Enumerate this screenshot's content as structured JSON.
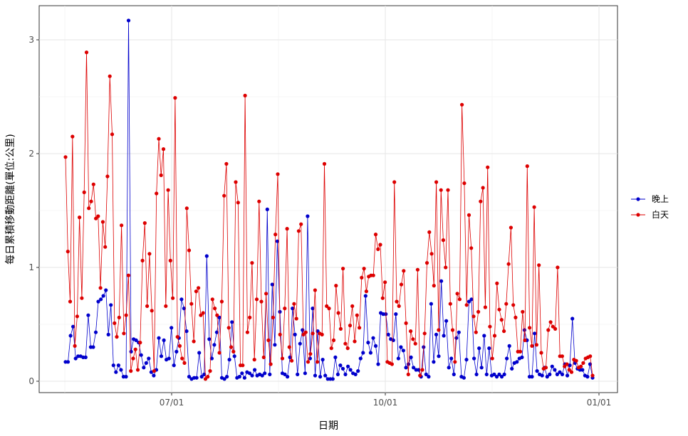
{
  "chart_data": {
    "type": "line",
    "xlabel": "日期",
    "ylabel": "每日累積移動距離(單位:公里)",
    "x_ticks": [
      "07/01",
      "10/01",
      "01/01"
    ],
    "y_ticks": [
      "0",
      "1",
      "2",
      "3"
    ],
    "ylim": [
      -0.1,
      3.3
    ],
    "grid": true,
    "legend_position": "right",
    "series": [
      {
        "name": "晚上",
        "color": "#0000cc",
        "values": [
          0.17,
          0.17,
          0.4,
          0.48,
          0.2,
          0.22,
          0.22,
          0.21,
          0.21,
          0.58,
          0.3,
          0.3,
          0.43,
          0.7,
          0.72,
          0.75,
          0.8,
          0.41,
          0.67,
          0.14,
          0.08,
          0.14,
          0.1,
          0.04,
          0.04,
          3.17,
          0.26,
          0.37,
          0.36,
          0.34,
          0.23,
          0.12,
          0.16,
          0.2,
          0.08,
          0.05,
          0.1,
          0.38,
          0.22,
          0.36,
          0.19,
          0.2,
          0.47,
          0.14,
          0.26,
          0.38,
          0.72,
          0.64,
          0.44,
          0.04,
          0.02,
          0.03,
          0.03,
          0.25,
          0.04,
          0.06,
          1.1,
          0.37,
          0.2,
          0.32,
          0.43,
          0.56,
          0.03,
          0.02,
          0.04,
          0.19,
          0.52,
          0.22,
          0.03,
          0.04,
          0.07,
          0.03,
          0.08,
          0.07,
          0.05,
          0.1,
          0.05,
          0.06,
          0.05,
          0.07,
          1.51,
          0.06,
          0.85,
          0.32,
          1.23,
          0.61,
          0.07,
          0.06,
          0.04,
          0.21,
          0.64,
          0.41,
          0.06,
          0.33,
          0.45,
          0.07,
          1.45,
          0.2,
          0.64,
          0.05,
          0.44,
          0.04,
          0.19,
          0.05,
          0.02,
          0.02,
          0.02,
          0.21,
          0.06,
          0.14,
          0.11,
          0.06,
          0.13,
          0.1,
          0.07,
          0.06,
          0.09,
          0.2,
          0.25,
          0.75,
          0.34,
          0.25,
          0.38,
          0.31,
          0.15,
          0.6,
          0.59,
          0.59,
          0.41,
          0.37,
          0.36,
          0.59,
          0.2,
          0.3,
          0.27,
          0.12,
          0.15,
          0.21,
          0.12,
          0.1,
          0.1,
          0.04,
          0.3,
          0.06,
          0.04,
          0.68,
          0.17,
          0.41,
          0.22,
          0.88,
          0.4,
          0.53,
          0.12,
          0.2,
          0.06,
          0.38,
          0.43,
          0.04,
          0.03,
          0.19,
          0.7,
          0.72,
          0.2,
          0.06,
          0.29,
          0.12,
          0.4,
          0.06,
          0.29,
          0.05,
          0.06,
          0.04,
          0.06,
          0.04,
          0.06,
          0.2,
          0.31,
          0.11,
          0.16,
          0.17,
          0.2,
          0.21,
          0.45,
          0.36,
          0.04,
          0.04,
          0.42,
          0.09,
          0.06,
          0.05,
          0.12,
          0.04,
          0.06,
          0.13,
          0.1,
          0.06,
          0.08,
          0.06,
          0.15,
          0.05,
          0.14,
          0.55,
          0.16,
          0.11,
          0.1,
          0.1,
          0.05,
          0.04,
          0.15,
          0.03
        ]
      },
      {
        "name": "白天",
        "color": "#dd0000",
        "values": [
          1.97,
          1.14,
          0.7,
          2.15,
          0.31,
          0.57,
          1.44,
          0.73,
          1.66,
          2.89,
          1.52,
          1.58,
          1.73,
          1.43,
          1.45,
          0.82,
          1.4,
          1.18,
          1.8,
          2.68,
          2.17,
          0.51,
          0.39,
          0.56,
          1.37,
          0.42,
          0.58,
          0.93,
          0.09,
          0.2,
          0.28,
          0.1,
          0.34,
          1.06,
          1.39,
          0.66,
          1.12,
          0.62,
          0.09,
          1.65,
          2.13,
          1.81,
          2.04,
          0.66,
          1.68,
          1.06,
          0.73,
          2.49,
          0.39,
          0.31,
          0.2,
          0.16,
          1.52,
          1.15,
          0.68,
          0.35,
          0.79,
          0.82,
          0.58,
          0.6,
          0.02,
          0.04,
          0.09,
          0.72,
          0.64,
          0.58,
          0.25,
          0.7,
          1.63,
          1.91,
          0.47,
          0.3,
          0.26,
          1.75,
          1.57,
          0.14,
          0.14,
          2.51,
          0.43,
          0.56,
          1.04,
          0.19,
          0.72,
          1.58,
          0.7,
          0.21,
          0.77,
          0.36,
          0.15,
          0.56,
          1.29,
          1.82,
          0.41,
          0.2,
          0.64,
          1.34,
          0.3,
          0.18,
          0.68,
          0.55,
          1.32,
          1.38,
          0.41,
          0.43,
          0.17,
          0.24,
          0.42,
          0.8,
          0.17,
          0.42,
          0.41,
          1.91,
          0.66,
          0.64,
          0.29,
          0.36,
          0.84,
          0.6,
          0.46,
          0.99,
          0.33,
          0.29,
          0.49,
          0.66,
          0.35,
          0.58,
          0.47,
          0.91,
          0.99,
          0.79,
          0.92,
          0.93,
          0.93,
          1.29,
          1.16,
          1.2,
          0.73,
          0.87,
          0.17,
          0.16,
          0.15,
          1.75,
          0.7,
          0.66,
          0.85,
          0.97,
          0.51,
          0.06,
          0.44,
          0.37,
          0.33,
          0.98,
          0.05,
          0.1,
          0.42,
          1.04,
          1.31,
          1.12,
          0.84,
          1.75,
          0.45,
          1.68,
          1.24,
          1.0,
          1.68,
          0.68,
          0.45,
          0.17,
          0.77,
          0.72,
          2.43,
          1.74,
          0.67,
          1.46,
          1.17,
          0.57,
          0.43,
          0.61,
          1.58,
          1.7,
          0.65,
          1.88,
          0.48,
          0.2,
          0.4,
          0.86,
          0.63,
          0.54,
          0.44,
          0.68,
          1.03,
          1.35,
          0.67,
          0.56,
          0.26,
          0.26,
          0.61,
          0.36,
          1.89,
          0.47,
          0.31,
          1.53,
          0.32,
          1.02,
          0.25,
          0.11,
          0.12,
          0.45,
          0.52,
          0.48,
          0.46,
          1.0,
          0.22,
          0.22,
          0.13,
          0.15,
          0.1,
          0.08,
          0.19,
          0.18,
          0.12,
          0.13,
          0.16,
          0.2,
          0.21,
          0.22,
          0.05
        ]
      }
    ]
  }
}
